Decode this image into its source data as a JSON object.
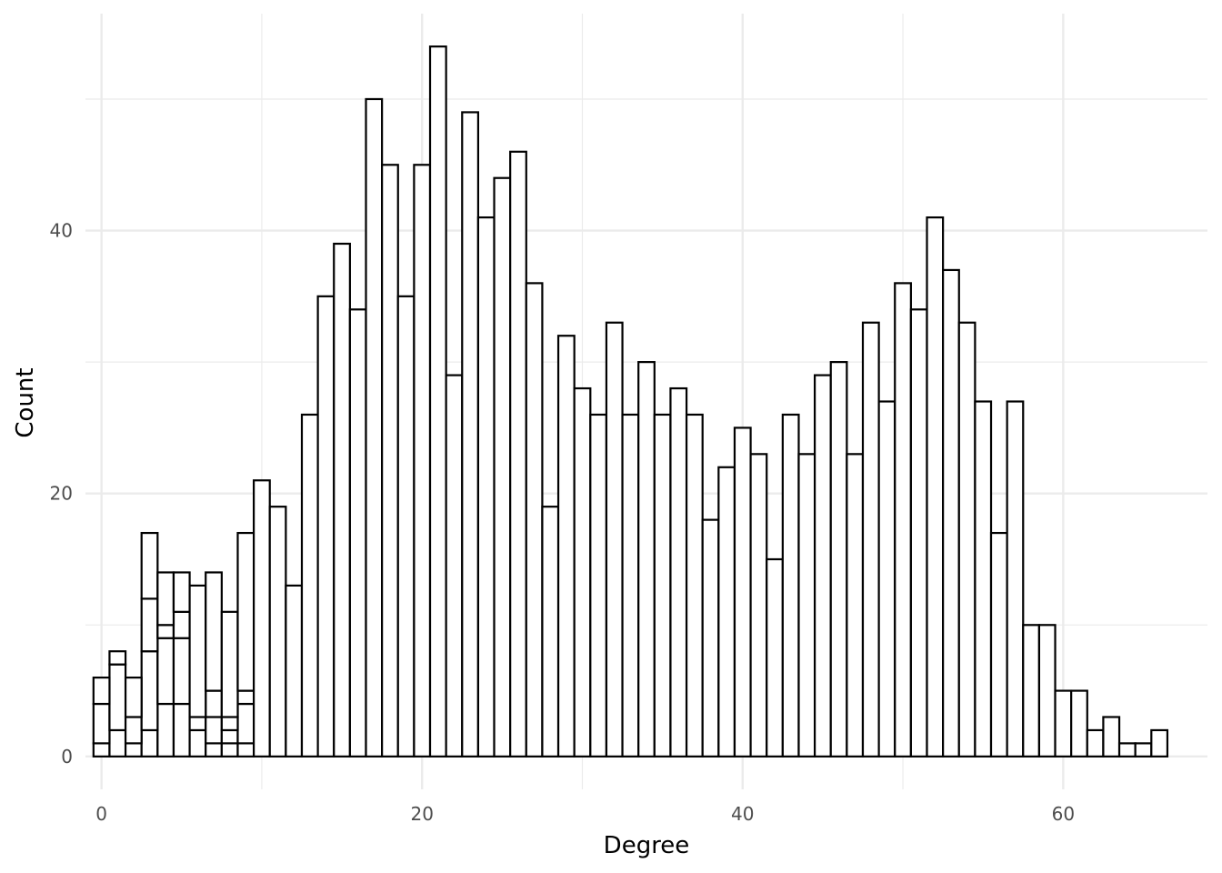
{
  "chart_data": {
    "type": "bar",
    "title": "",
    "xlabel": "Degree",
    "ylabel": "Count",
    "xlim": [
      -1,
      69
    ],
    "ylim": [
      -2.5,
      56.5
    ],
    "x_ticks": [
      0,
      20,
      40,
      60
    ],
    "y_ticks": [
      0,
      20,
      40
    ],
    "grid": true,
    "fill_color": "#ffffff",
    "outline_color": "#000000",
    "grid_color": "#ebebeb",
    "degrees": [
      0,
      1,
      2,
      3,
      4,
      5,
      6,
      7,
      8,
      9,
      10,
      11,
      12,
      13,
      14,
      15,
      16,
      17,
      18,
      19,
      20,
      21,
      22,
      23,
      24,
      25,
      26,
      27,
      28,
      29,
      30,
      31,
      32,
      33,
      34,
      35,
      36,
      37,
      38,
      39,
      40,
      41,
      42,
      43,
      44,
      45,
      46,
      47,
      48,
      49,
      50,
      51,
      52,
      53,
      54,
      55,
      56,
      57,
      58,
      59,
      60,
      61,
      62,
      63,
      64,
      65,
      66
    ],
    "series": [
      {
        "values": [
          1,
          2,
          1,
          2,
          4,
          4,
          2,
          1,
          1,
          1,
          0,
          0,
          0,
          0,
          0,
          0,
          0,
          0,
          0,
          0,
          0,
          0,
          0,
          0,
          0,
          0,
          0,
          0,
          0,
          0,
          0,
          0,
          0,
          0,
          0,
          0,
          0,
          0,
          0,
          0,
          0,
          0,
          0,
          0,
          0,
          0,
          0,
          0,
          0,
          0,
          0,
          0,
          0,
          0,
          0,
          0,
          0,
          0,
          0,
          0,
          0,
          0,
          0,
          0,
          0,
          0,
          0
        ]
      },
      {
        "values": [
          3,
          5,
          2,
          6,
          5,
          5,
          1,
          2,
          1,
          3,
          0,
          0,
          0,
          0,
          0,
          0,
          0,
          0,
          0,
          0,
          0,
          0,
          0,
          0,
          0,
          0,
          0,
          0,
          0,
          0,
          0,
          0,
          0,
          0,
          0,
          0,
          0,
          0,
          0,
          0,
          0,
          0,
          0,
          0,
          0,
          0,
          0,
          0,
          0,
          0,
          0,
          0,
          0,
          0,
          0,
          0,
          0,
          0,
          0,
          0,
          0,
          0,
          0,
          0,
          0,
          0,
          0
        ]
      },
      {
        "values": [
          2,
          1,
          3,
          4,
          1,
          2,
          0,
          2,
          1,
          1,
          0,
          0,
          0,
          0,
          0,
          0,
          0,
          0,
          0,
          0,
          0,
          0,
          0,
          0,
          0,
          0,
          0,
          0,
          0,
          0,
          0,
          0,
          0,
          0,
          0,
          0,
          0,
          0,
          0,
          0,
          0,
          0,
          0,
          0,
          0,
          0,
          0,
          0,
          0,
          0,
          0,
          0,
          0,
          0,
          0,
          0,
          0,
          0,
          0,
          0,
          0,
          0,
          0,
          0,
          0,
          0,
          0
        ]
      },
      {
        "values": [
          0,
          0,
          0,
          5,
          4,
          3,
          10,
          9,
          8,
          12,
          21,
          19,
          13,
          26,
          35,
          39,
          34,
          50,
          45,
          35,
          45,
          54,
          29,
          49,
          41,
          44,
          46,
          36,
          19,
          32,
          28,
          26,
          33,
          26,
          30,
          26,
          28,
          26,
          18,
          22,
          25,
          23,
          15,
          26,
          23,
          29,
          30,
          23,
          33,
          27,
          36,
          34,
          41,
          37,
          33,
          27,
          17,
          27,
          10,
          10,
          5,
          5,
          2,
          3,
          1,
          1,
          2
        ]
      }
    ]
  }
}
